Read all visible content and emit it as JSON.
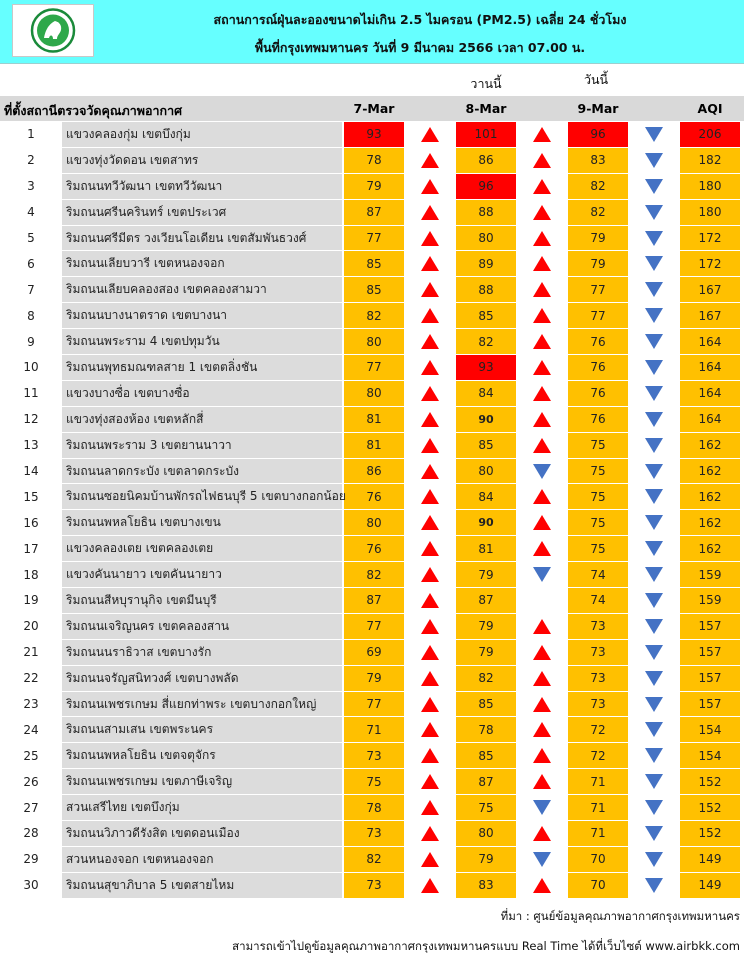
{
  "header": {
    "title_line1": "สถานการณ์ฝุ่นละอองขนาดไม่เกิน 2.5 ไมครอน (PM2.5) เฉลี่ย 24 ชั่วโมง",
    "title_line2": "พื้นที่กรุงเทพมหานคร วันที่ 9 มีนาคม 2566 เวลา 07.00 น.",
    "bg_color": "#66ffff"
  },
  "sublabels": {
    "yesterday": "วานนี้",
    "today": "วันนี้"
  },
  "columns": {
    "location": "ที่ตั้งสถานีตรวจวัดคุณภาพอากาศ",
    "d1": "7-Mar",
    "d2": "8-Mar",
    "d3": "9-Mar",
    "aqi": "AQI"
  },
  "colors": {
    "moderate": "#ffc000",
    "high": "#ff0000",
    "up_arrow": "#ff0000",
    "down_arrow": "#4472c4"
  },
  "rows": [
    {
      "no": "1",
      "loc": "แขวงคลองกุ่ม เขตบึงกุ่ม",
      "d1": "93",
      "a1": "up",
      "d2": "101",
      "a2": "up",
      "d3": "96",
      "a3": "down",
      "aqi": "206",
      "hi1": true,
      "hi2": true,
      "hi3": true,
      "hiaqi": true
    },
    {
      "no": "2",
      "loc": "แขวงทุ่งวัดดอน เขตสาทร",
      "d1": "78",
      "a1": "up",
      "d2": "86",
      "a2": "up",
      "d3": "83",
      "a3": "down",
      "aqi": "182"
    },
    {
      "no": "3",
      "loc": "ริมถนนทวีวัฒนา เขตทวีวัฒนา",
      "d1": "79",
      "a1": "up",
      "d2": "96",
      "a2": "up",
      "d3": "82",
      "a3": "down",
      "aqi": "180",
      "hi2": true
    },
    {
      "no": "4",
      "loc": "ริมถนนศรีนครินทร์ เขตประเวศ",
      "d1": "87",
      "a1": "up",
      "d2": "88",
      "a2": "up",
      "d3": "82",
      "a3": "down",
      "aqi": "180"
    },
    {
      "no": "5",
      "loc": "ริมถนนศรีมีตร วงเวียนโอเดียน เขตสัมพันธวงศ์",
      "d1": "77",
      "a1": "up",
      "d2": "80",
      "a2": "up",
      "d3": "79",
      "a3": "down",
      "aqi": "172"
    },
    {
      "no": "6",
      "loc": "ริมถนนเลียบวารี เขตหนองจอก",
      "d1": "85",
      "a1": "up",
      "d2": "89",
      "a2": "up",
      "d3": "79",
      "a3": "down",
      "aqi": "172"
    },
    {
      "no": "7",
      "loc": "ริมถนนเลียบคลองสอง เขตคลองสามวา",
      "d1": "85",
      "a1": "up",
      "d2": "88",
      "a2": "up",
      "d3": "77",
      "a3": "down",
      "aqi": "167"
    },
    {
      "no": "8",
      "loc": "ริมถนนบางนาตราด เขตบางนา",
      "d1": "82",
      "a1": "up",
      "d2": "85",
      "a2": "up",
      "d3": "77",
      "a3": "down",
      "aqi": "167"
    },
    {
      "no": "9",
      "loc": "ริมถนนพระราม 4 เขตปทุมวัน",
      "d1": "80",
      "a1": "up",
      "d2": "82",
      "a2": "up",
      "d3": "76",
      "a3": "down",
      "aqi": "164"
    },
    {
      "no": "10",
      "loc": "ริมถนนพุทธมณฑลสาย 1 เขตตลิ่งชัน",
      "d1": "77",
      "a1": "up",
      "d2": "93",
      "a2": "up",
      "d3": "76",
      "a3": "down",
      "aqi": "164",
      "hi2": true
    },
    {
      "no": "11",
      "loc": "แขวงบางซื่อ เขตบางซื่อ",
      "d1": "80",
      "a1": "up",
      "d2": "84",
      "a2": "up",
      "d3": "76",
      "a3": "down",
      "aqi": "164"
    },
    {
      "no": "12",
      "loc": "แขวงทุ่งสองห้อง เขตหลักสี่",
      "d1": "81",
      "a1": "up",
      "d2": "90",
      "a2": "up",
      "d3": "76",
      "a3": "down",
      "aqi": "164",
      "b2": true
    },
    {
      "no": "13",
      "loc": "ริมถนนพระราม 3 เขตยานนาวา",
      "d1": "81",
      "a1": "up",
      "d2": "85",
      "a2": "up",
      "d3": "75",
      "a3": "down",
      "aqi": "162"
    },
    {
      "no": "14",
      "loc": "ริมถนนลาดกระบัง เขตลาดกระบัง",
      "d1": "86",
      "a1": "up",
      "d2": "80",
      "a2": "down",
      "d3": "75",
      "a3": "down",
      "aqi": "162"
    },
    {
      "no": "15",
      "loc": "ริมถนนซอยนิคมบ้านพักรถไฟธนบุรี 5 เขตบางกอกน้อย",
      "d1": "76",
      "a1": "up",
      "d2": "84",
      "a2": "up",
      "d3": "75",
      "a3": "down",
      "aqi": "162"
    },
    {
      "no": "16",
      "loc": "ริมถนนพหลโยธิน เขตบางเขน",
      "d1": "80",
      "a1": "up",
      "d2": "90",
      "a2": "up",
      "d3": "75",
      "a3": "down",
      "aqi": "162",
      "b2": true
    },
    {
      "no": "17",
      "loc": "แขวงคลองเตย เขตคลองเตย",
      "d1": "76",
      "a1": "up",
      "d2": "81",
      "a2": "up",
      "d3": "75",
      "a3": "down",
      "aqi": "162"
    },
    {
      "no": "18",
      "loc": "แขวงคันนายาว เขตคันนายาว",
      "d1": "82",
      "a1": "up",
      "d2": "79",
      "a2": "down",
      "d3": "74",
      "a3": "down",
      "aqi": "159"
    },
    {
      "no": "19",
      "loc": "ริมถนนสีหบุรานุกิจ เขตมีนบุรี",
      "d1": "87",
      "a1": "up",
      "d2": "87",
      "a2": "",
      "d3": "74",
      "a3": "down",
      "aqi": "159"
    },
    {
      "no": "20",
      "loc": "ริมถนนเจริญนคร เขตคลองสาน",
      "d1": "77",
      "a1": "up",
      "d2": "79",
      "a2": "up",
      "d3": "73",
      "a3": "down",
      "aqi": "157"
    },
    {
      "no": "21",
      "loc": "ริมถนนนราธิวาส เขตบางรัก",
      "d1": "69",
      "a1": "up",
      "d2": "79",
      "a2": "up",
      "d3": "73",
      "a3": "down",
      "aqi": "157"
    },
    {
      "no": "22",
      "loc": "ริมถนนจรัญสนิทวงศ์ เขตบางพลัด",
      "d1": "79",
      "a1": "up",
      "d2": "82",
      "a2": "up",
      "d3": "73",
      "a3": "down",
      "aqi": "157"
    },
    {
      "no": "23",
      "loc": "ริมถนนเพชรเกษม สี่แยกท่าพระ เขตบางกอกใหญ่",
      "d1": "77",
      "a1": "up",
      "d2": "85",
      "a2": "up",
      "d3": "73",
      "a3": "down",
      "aqi": "157"
    },
    {
      "no": "24",
      "loc": "ริมถนนสามเสน เขตพระนคร",
      "d1": "71",
      "a1": "up",
      "d2": "78",
      "a2": "up",
      "d3": "72",
      "a3": "down",
      "aqi": "154"
    },
    {
      "no": "25",
      "loc": "ริมถนนพหลโยธิน เขตจตุจักร",
      "d1": "73",
      "a1": "up",
      "d2": "85",
      "a2": "up",
      "d3": "72",
      "a3": "down",
      "aqi": "154"
    },
    {
      "no": "26",
      "loc": "ริมถนนเพชรเกษม เขตภาษีเจริญ",
      "d1": "75",
      "a1": "up",
      "d2": "87",
      "a2": "up",
      "d3": "71",
      "a3": "down",
      "aqi": "152"
    },
    {
      "no": "27",
      "loc": "สวนเสรีไทย เขตบึงกุ่ม",
      "d1": "78",
      "a1": "up",
      "d2": "75",
      "a2": "down",
      "d3": "71",
      "a3": "down",
      "aqi": "152"
    },
    {
      "no": "28",
      "loc": "ริมถนนวิภาวดีรังสิต เขตดอนเมือง",
      "d1": "73",
      "a1": "up",
      "d2": "80",
      "a2": "up",
      "d3": "71",
      "a3": "down",
      "aqi": "152"
    },
    {
      "no": "29",
      "loc": "สวนหนองจอก เขตหนองจอก",
      "d1": "82",
      "a1": "up",
      "d2": "79",
      "a2": "down",
      "d3": "70",
      "a3": "down",
      "aqi": "149"
    },
    {
      "no": "30",
      "loc": "ริมถนนสุขาภิบาล 5 เขตสายไหม",
      "d1": "73",
      "a1": "up",
      "d2": "83",
      "a2": "up",
      "d3": "70",
      "a3": "down",
      "aqi": "149"
    }
  ],
  "source": "ที่มา : ศูนย์ข้อมูลคุณภาพอากาศกรุงเทพมหานคร",
  "footer": "สามารถเข้าไปดูข้อมูลคุณภาพอากาศกรุงเทพมหานครแบบ Real Time ได้ที่เว็บไซต์ www.airbkk.com"
}
